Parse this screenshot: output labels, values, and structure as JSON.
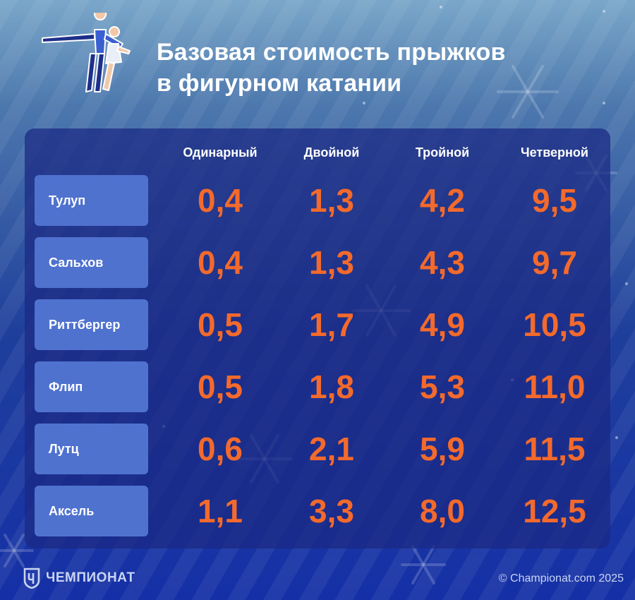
{
  "title_lines": [
    "Базовая стоимость прыжков",
    "в фигурном катании"
  ],
  "chart_data": {
    "type": "table",
    "title": "Базовая стоимость прыжков в фигурном катании",
    "columns": [
      "Одинарный",
      "Двойной",
      "Тройной",
      "Четверной"
    ],
    "rows": [
      {
        "label": "Тулуп",
        "values": [
          "0,4",
          "1,3",
          "4,2",
          "9,5"
        ]
      },
      {
        "label": "Сальхов",
        "values": [
          "0,4",
          "1,3",
          "4,3",
          "9,7"
        ]
      },
      {
        "label": "Риттбергер",
        "values": [
          "0,5",
          "1,7",
          "4,9",
          "10,5"
        ]
      },
      {
        "label": "Флип",
        "values": [
          "0,5",
          "1,8",
          "5,3",
          "11,0"
        ]
      },
      {
        "label": "Лутц",
        "values": [
          "0,6",
          "2,1",
          "5,9",
          "11,5"
        ]
      },
      {
        "label": "Аксель",
        "values": [
          "1,1",
          "3,3",
          "8,0",
          "12,5"
        ]
      }
    ]
  },
  "footer": {
    "logo_text": "ЧЕМПИОНАТ",
    "copyright": "© Championat.com 2025"
  },
  "colors": {
    "accent_value": "#f36a2c",
    "label_bg": "#4f72cf",
    "panel_bg": "#1a2882"
  }
}
